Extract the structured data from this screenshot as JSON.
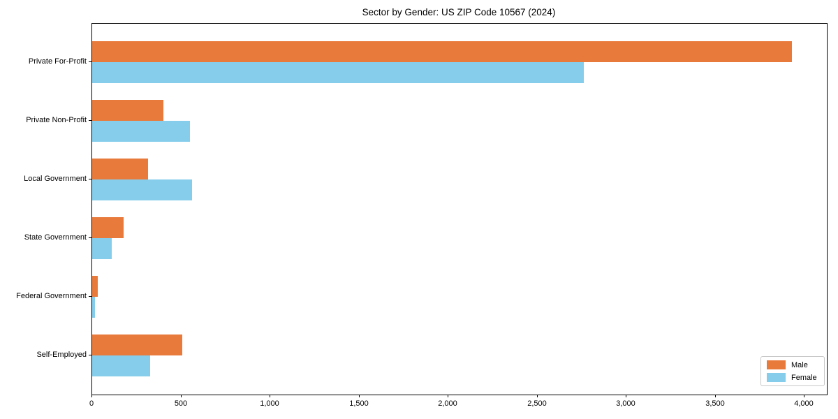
{
  "chart_data": {
    "type": "bar",
    "orientation": "horizontal",
    "title": "Sector by Gender: US ZIP Code 10567 (2024)",
    "xlabel": "",
    "ylabel": "",
    "categories": [
      "Private For-Profit",
      "Private Non-Profit",
      "Local Government",
      "State Government",
      "Federal Government",
      "Self-Employed"
    ],
    "series": [
      {
        "name": "Male",
        "color": "#e87a3c",
        "values": [
          3930,
          400,
          315,
          175,
          30,
          505
        ]
      },
      {
        "name": "Female",
        "color": "#85cdea",
        "values": [
          2760,
          550,
          560,
          110,
          15,
          325
        ]
      }
    ],
    "xlim": [
      0,
      4125
    ],
    "xticks": [
      0,
      500,
      1000,
      1500,
      2000,
      2500,
      3000,
      3500,
      4000
    ],
    "xtick_labels": [
      "0",
      "500",
      "1,000",
      "1,500",
      "2,000",
      "2,500",
      "3,000",
      "3,500",
      "4,000"
    ],
    "grid": false,
    "legend_position": "lower right",
    "spine_color": "#000000"
  }
}
